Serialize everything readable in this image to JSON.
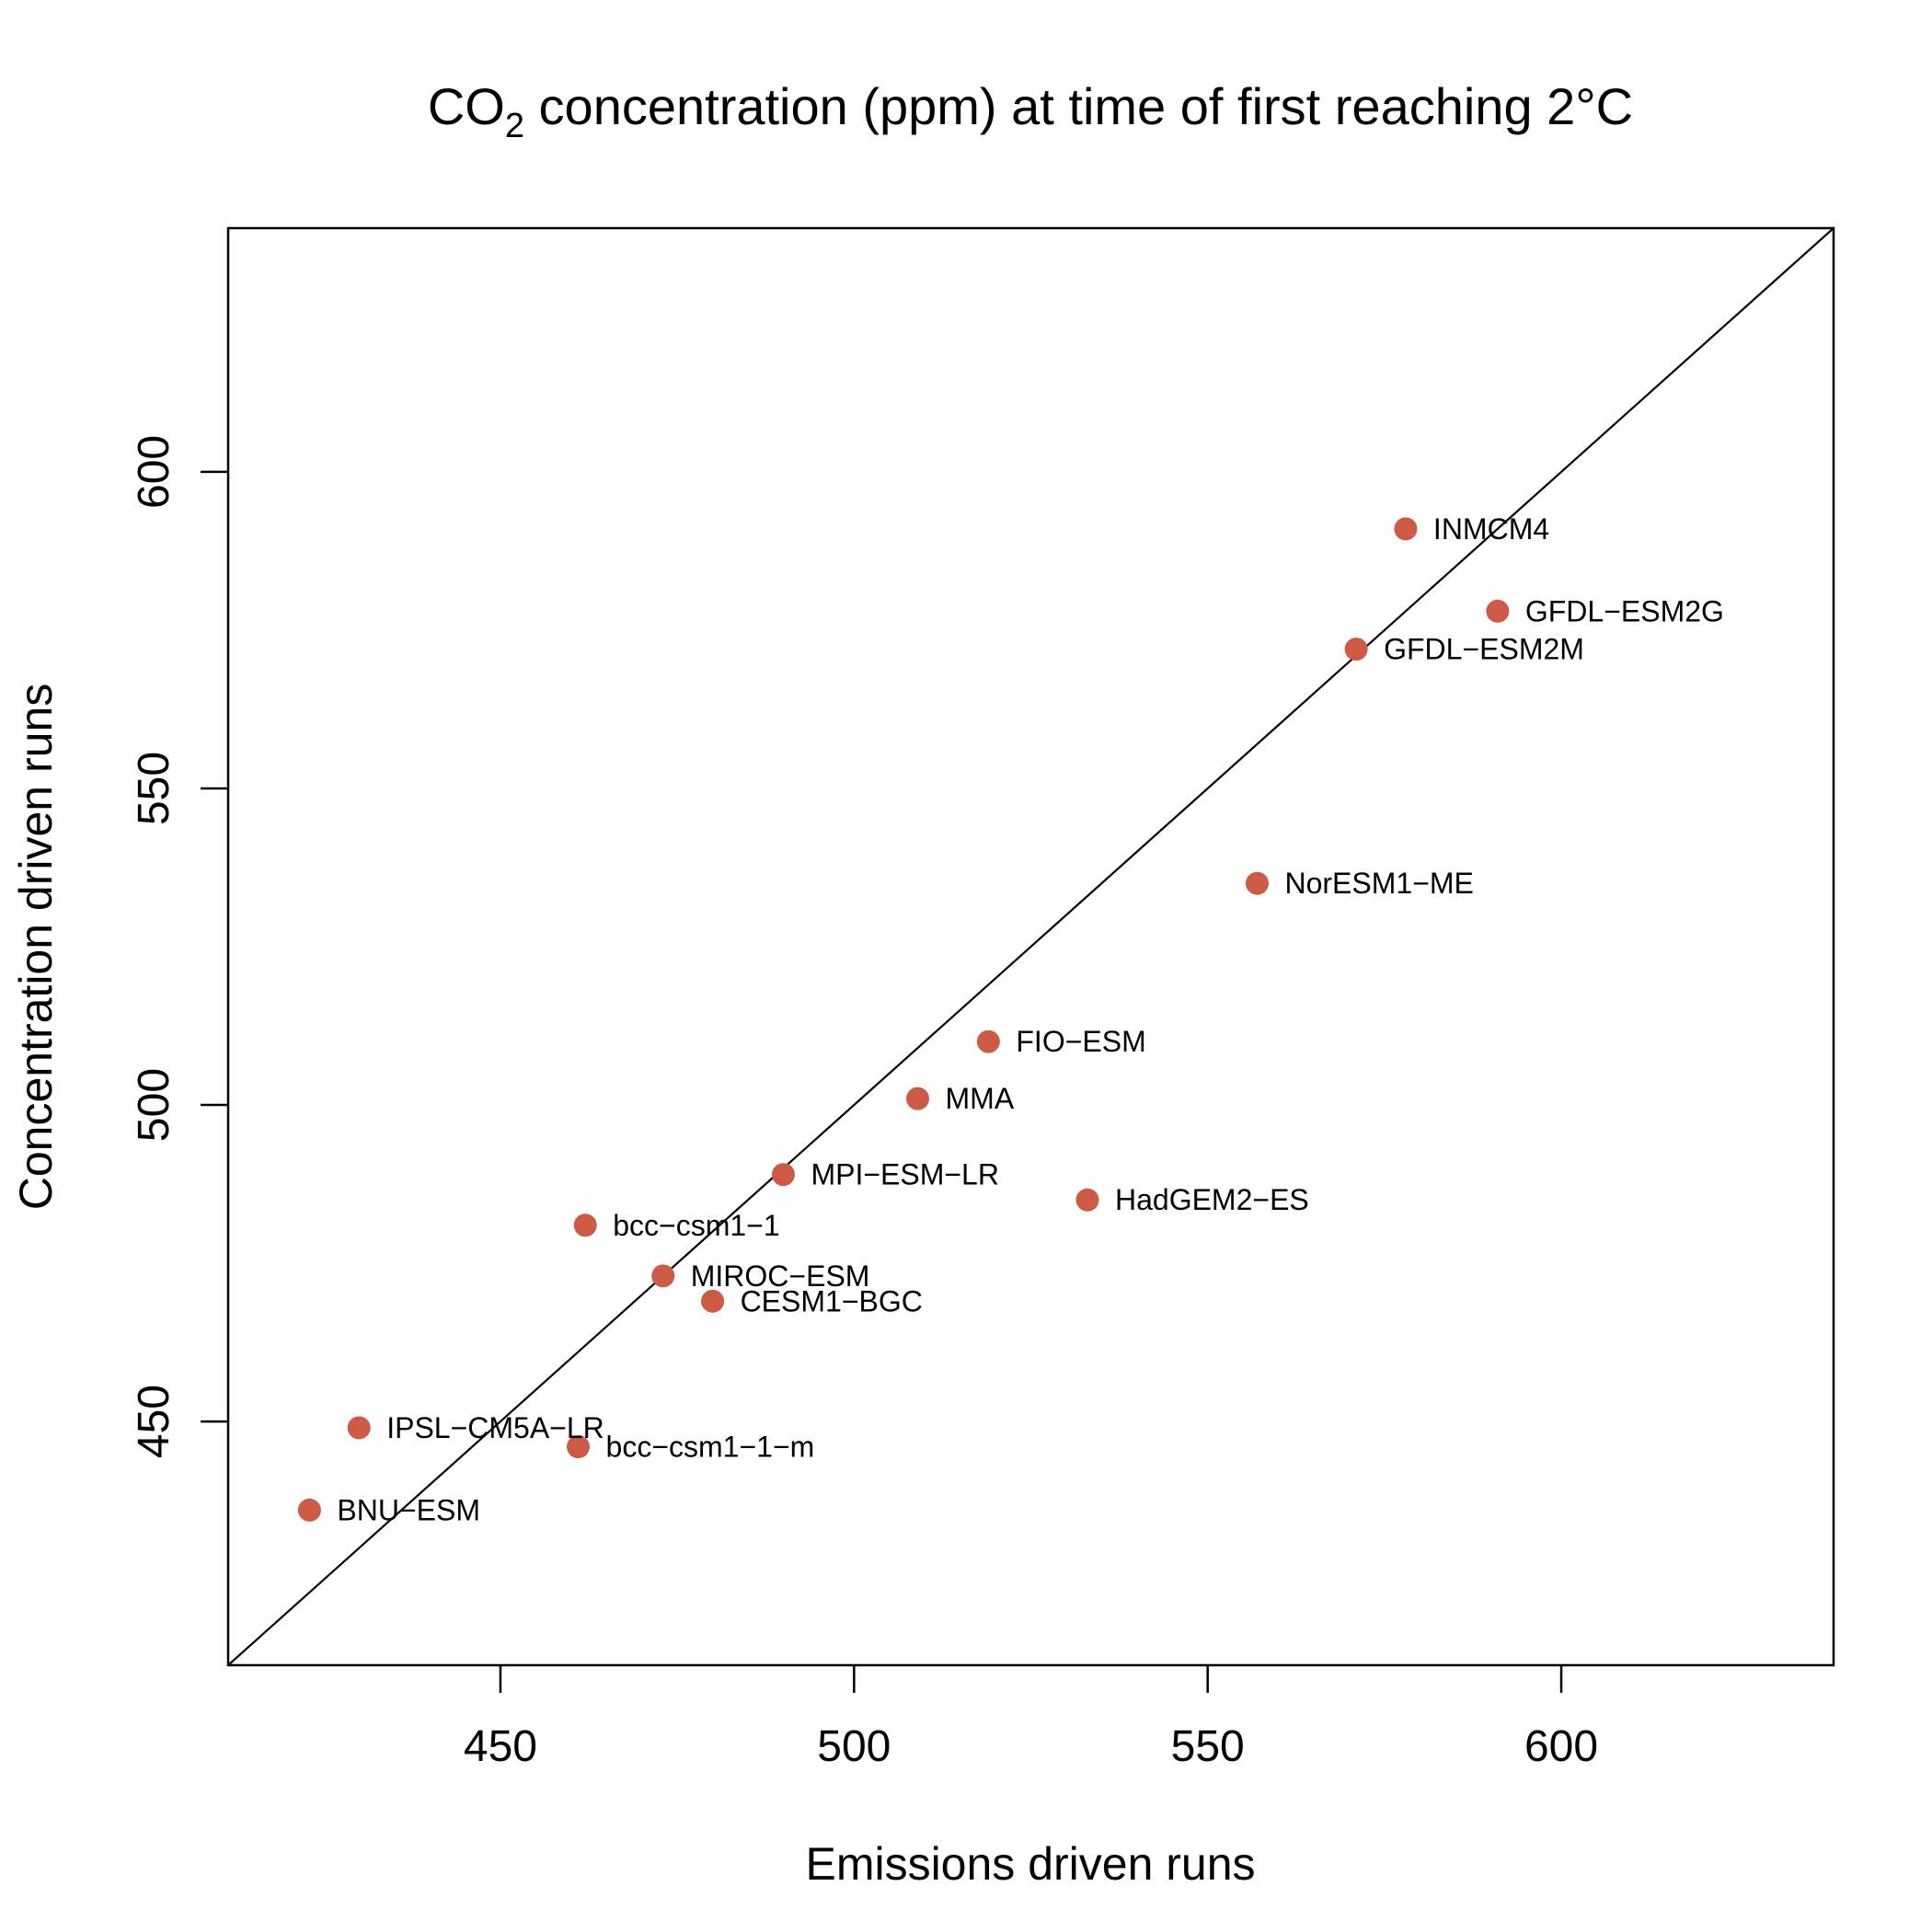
{
  "chart_data": {
    "type": "scatter",
    "title": {
      "prefix": "CO",
      "subscript": "2",
      "suffix": " concentration (ppm) at time of first reaching 2°C"
    },
    "xlabel": "Emissions driven runs",
    "ylabel": "Concentration driven runs",
    "xlim": [
      411.5,
      638.5
    ],
    "ylim": [
      411.5,
      638.5
    ],
    "xticks": [
      450,
      500,
      550,
      600
    ],
    "yticks": [
      450,
      500,
      550,
      600
    ],
    "reference_line": "y = x",
    "marker_color": "#cc5a45",
    "points": [
      {
        "label": "INMCM4",
        "x": 578,
        "y": 591
      },
      {
        "label": "GFDL−ESM2G",
        "x": 591,
        "y": 578
      },
      {
        "label": "GFDL−ESM2M",
        "x": 571,
        "y": 572
      },
      {
        "label": "NorESM1−ME",
        "x": 557,
        "y": 535
      },
      {
        "label": "FIO−ESM",
        "x": 519,
        "y": 510
      },
      {
        "label": "MMA",
        "x": 509,
        "y": 501
      },
      {
        "label": "MPI−ESM−LR",
        "x": 490,
        "y": 489
      },
      {
        "label": "HadGEM2−ES",
        "x": 533,
        "y": 485
      },
      {
        "label": "bcc−csm1−1",
        "x": 462,
        "y": 481
      },
      {
        "label": "MIROC−ESM",
        "x": 473,
        "y": 473
      },
      {
        "label": "CESM1−BGC",
        "x": 480,
        "y": 469
      },
      {
        "label": "IPSL−CM5A−LR",
        "x": 430,
        "y": 449
      },
      {
        "label": "bcc−csm1−1−m",
        "x": 461,
        "y": 446
      },
      {
        "label": "BNU−ESM",
        "x": 423,
        "y": 436
      }
    ]
  }
}
